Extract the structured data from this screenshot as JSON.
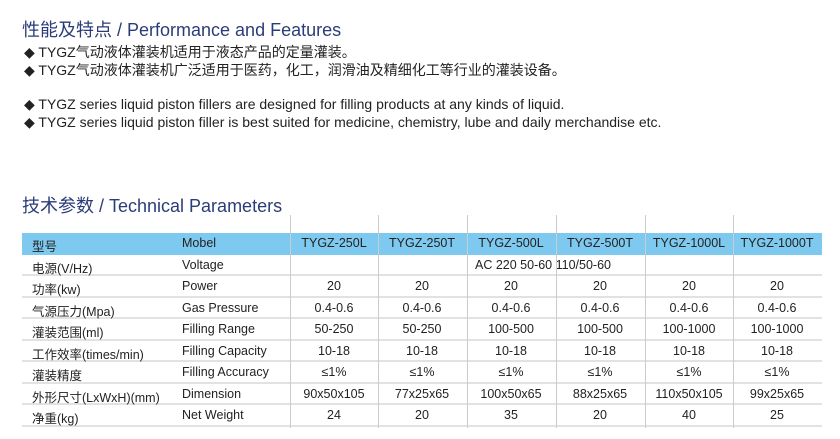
{
  "features": {
    "title": "性能及特点 / Performance and Features",
    "bullets": [
      "◆ TYGZ气动液体灌装机适用于液态产品的定量灌装。",
      "◆ TYGZ气动液体灌装机广泛适用于医药，化工，润滑油及精细化工等行业的灌装设备。",
      "◆ TYGZ series liquid piston fillers are designed for filling products at any kinds of liquid.",
      "◆ TYGZ series liquid piston filler is best suited for medicine, chemistry, lube and daily merchandise etc."
    ]
  },
  "params": {
    "title": "技术参数 / Technical Parameters",
    "header": {
      "cn": "型号",
      "en": "Mobel",
      "models": [
        "TYGZ-250L",
        "TYGZ-250T",
        "TYGZ-500L",
        "TYGZ-500T",
        "TYGZ-1000L",
        "TYGZ-1000T"
      ]
    },
    "voltage": {
      "cn": "电源(V/Hz)",
      "en": "Voltage",
      "value": "AC 220  50-60  110/50-60"
    },
    "rows": [
      {
        "cn": "功率(kw)",
        "en": "Power",
        "values": [
          "20",
          "20",
          "20",
          "20",
          "20",
          "20"
        ]
      },
      {
        "cn": "气源压力(Mpa)",
        "en": "Gas Pressure",
        "values": [
          "0.4-0.6",
          "0.4-0.6",
          "0.4-0.6",
          "0.4-0.6",
          "0.4-0.6",
          "0.4-0.6"
        ]
      },
      {
        "cn": "灌装范围(ml)",
        "en": "Filling Range",
        "values": [
          "50-250",
          "50-250",
          "100-500",
          "100-500",
          "100-1000",
          "100-1000"
        ]
      },
      {
        "cn": "工作效率(times/min)",
        "en": "Filling Capacity",
        "values": [
          "10-18",
          "10-18",
          "10-18",
          "10-18",
          "10-18",
          "10-18"
        ]
      },
      {
        "cn": "灌装精度",
        "en": "Filling Accuracy",
        "values": [
          "≤1%",
          "≤1%",
          "≤1%",
          "≤1%",
          "≤1%",
          "≤1%"
        ]
      },
      {
        "cn": "外形尺寸(LxWxH)(mm)",
        "en": "Dimension",
        "values": [
          "90x50x105",
          "77x25x65",
          "100x50x65",
          "88x25x65",
          "110x50x105",
          "99x25x65"
        ]
      },
      {
        "cn": "净重(kg)",
        "en": "Net Weight",
        "values": [
          "24",
          "20",
          "35",
          "20",
          "40",
          "25"
        ]
      }
    ]
  },
  "colors": {
    "title": "#2b3d78",
    "header_bg": "#7ec9ef"
  }
}
